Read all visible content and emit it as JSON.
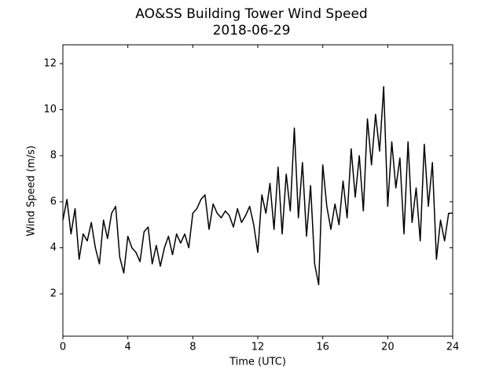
{
  "chart_data": {
    "type": "line",
    "title": "AO&SS Building Tower Wind Speed",
    "subtitle": "2018-06-29",
    "x_label": "Time (UTC)",
    "y_label": "Wind Speed (m/s)",
    "x": [
      0,
      0.25,
      0.5,
      0.75,
      1,
      1.25,
      1.5,
      1.75,
      2,
      2.25,
      2.5,
      2.75,
      3,
      3.25,
      3.5,
      3.75,
      4,
      4.25,
      4.5,
      4.75,
      5,
      5.25,
      5.5,
      5.75,
      6,
      6.25,
      6.5,
      6.75,
      7,
      7.25,
      7.5,
      7.75,
      8,
      8.25,
      8.5,
      8.75,
      9,
      9.25,
      9.5,
      9.75,
      10,
      10.25,
      10.5,
      10.75,
      11,
      11.25,
      11.5,
      11.75,
      12,
      12.25,
      12.5,
      12.75,
      13,
      13.25,
      13.5,
      13.75,
      14,
      14.25,
      14.5,
      14.75,
      15,
      15.25,
      15.5,
      15.75,
      16,
      16.25,
      16.5,
      16.75,
      17,
      17.25,
      17.5,
      17.75,
      18,
      18.25,
      18.5,
      18.75,
      19,
      19.25,
      19.5,
      19.75,
      20,
      20.25,
      20.5,
      20.75,
      21,
      21.25,
      21.5,
      21.75,
      22,
      22.25,
      22.5,
      22.75,
      23,
      23.25,
      23.5,
      23.75,
      24
    ],
    "series": [
      {
        "name": "Wind Speed",
        "color": "#000000",
        "values": [
          5.2,
          6.1,
          4.6,
          5.7,
          3.5,
          4.6,
          4.3,
          5.1,
          4.0,
          3.3,
          5.2,
          4.4,
          5.5,
          5.8,
          3.6,
          2.9,
          4.5,
          4.0,
          3.8,
          3.4,
          4.7,
          4.9,
          3.3,
          4.1,
          3.2,
          4.0,
          4.5,
          3.7,
          4.6,
          4.2,
          4.6,
          4.0,
          5.5,
          5.7,
          6.1,
          6.3,
          4.8,
          5.9,
          5.5,
          5.3,
          5.6,
          5.4,
          4.9,
          5.7,
          5.1,
          5.4,
          5.8,
          5.0,
          3.8,
          6.3,
          5.5,
          6.8,
          4.8,
          7.5,
          4.6,
          7.2,
          5.6,
          9.2,
          5.3,
          7.7,
          4.5,
          6.7,
          3.3,
          2.4,
          7.6,
          5.8,
          4.8,
          5.9,
          5.0,
          6.9,
          5.3,
          8.3,
          6.2,
          8.0,
          5.6,
          9.6,
          7.6,
          9.8,
          8.2,
          11.0,
          5.8,
          8.6,
          6.6,
          7.9,
          4.6,
          8.6,
          5.1,
          6.6,
          4.3,
          8.5,
          5.8,
          7.7,
          3.5,
          5.2,
          4.3,
          5.5,
          5.5
        ]
      }
    ],
    "xlim": [
      0,
      24
    ],
    "xticks": [
      0,
      4,
      8,
      12,
      16,
      20,
      24
    ],
    "ylim": [
      0.16,
      12.82
    ],
    "yticks": [
      2,
      4,
      6,
      8,
      10,
      12
    ]
  }
}
